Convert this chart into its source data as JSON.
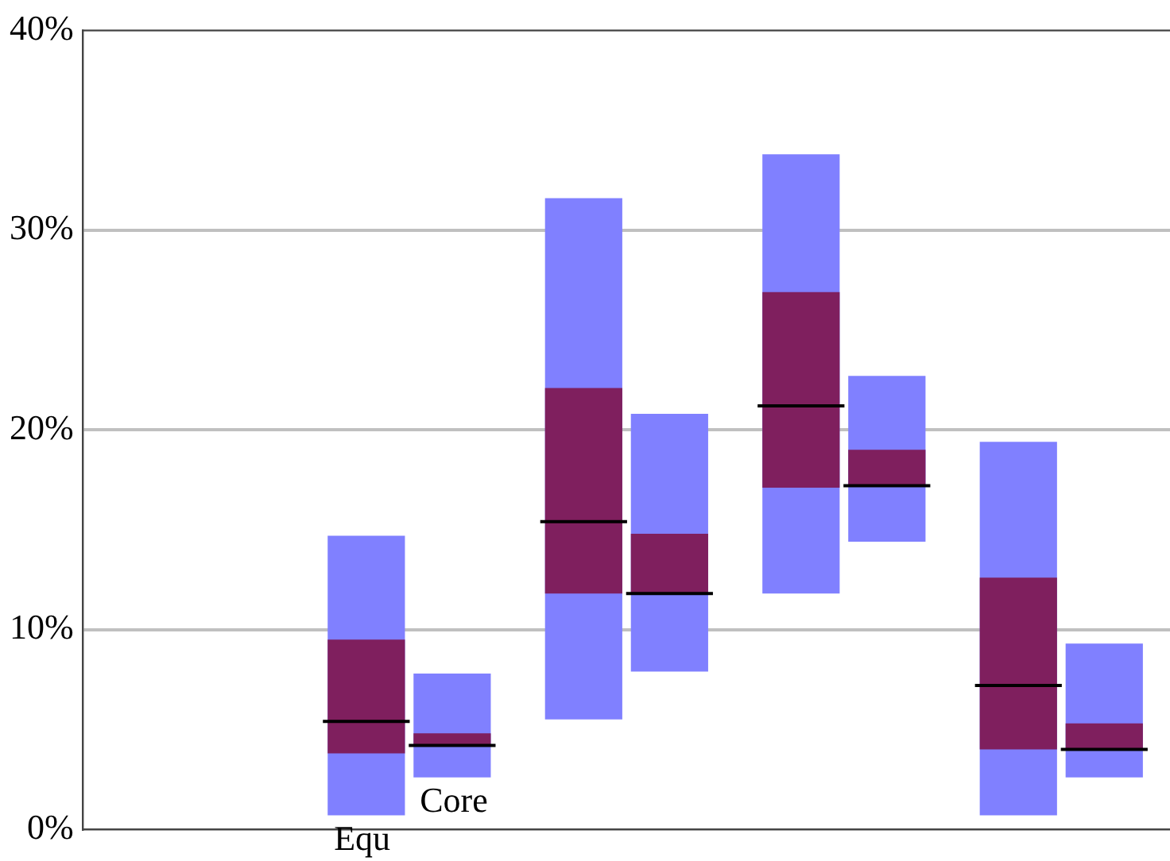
{
  "chart_data": {
    "type": "box",
    "categories": [
      null,
      null,
      null,
      null,
      null
    ],
    "series": [
      {
        "name": "Equ",
        "color": "#7f1f5e",
        "boxes": [
          null,
          {
            "low": 0.7,
            "q1": 3.8,
            "median": 5.4,
            "q3": 9.5,
            "high": 14.7
          },
          {
            "low": 5.5,
            "q1": 11.8,
            "median": 15.4,
            "q3": 22.1,
            "high": 31.6
          },
          {
            "low": 11.8,
            "q1": 17.1,
            "median": 21.2,
            "q3": 26.9,
            "high": 33.8
          },
          {
            "low": 0.7,
            "q1": 4.0,
            "median": 7.2,
            "q3": 12.6,
            "high": 19.4
          }
        ]
      },
      {
        "name": "Core",
        "color": "#7f1f5e",
        "boxes": [
          null,
          {
            "low": 2.6,
            "q1": 4.2,
            "median": 4.2,
            "q3": 4.8,
            "high": 7.8
          },
          {
            "low": 7.9,
            "q1": 11.8,
            "median": 11.8,
            "q3": 14.8,
            "high": 20.8
          },
          {
            "low": 14.4,
            "q1": 17.2,
            "median": 17.2,
            "q3": 19.0,
            "high": 22.7
          },
          {
            "low": 2.6,
            "q1": 4.0,
            "median": 4.0,
            "q3": 5.3,
            "high": 9.3
          }
        ]
      }
    ],
    "ylim": [
      0,
      40
    ],
    "yticks": [
      {
        "value": 0,
        "label": "0%"
      },
      {
        "value": 10,
        "label": "10%"
      },
      {
        "value": 20,
        "label": "20%"
      },
      {
        "value": 30,
        "label": "30%"
      },
      {
        "value": 40,
        "label": "40%"
      }
    ],
    "grid": "y",
    "legend": false
  }
}
